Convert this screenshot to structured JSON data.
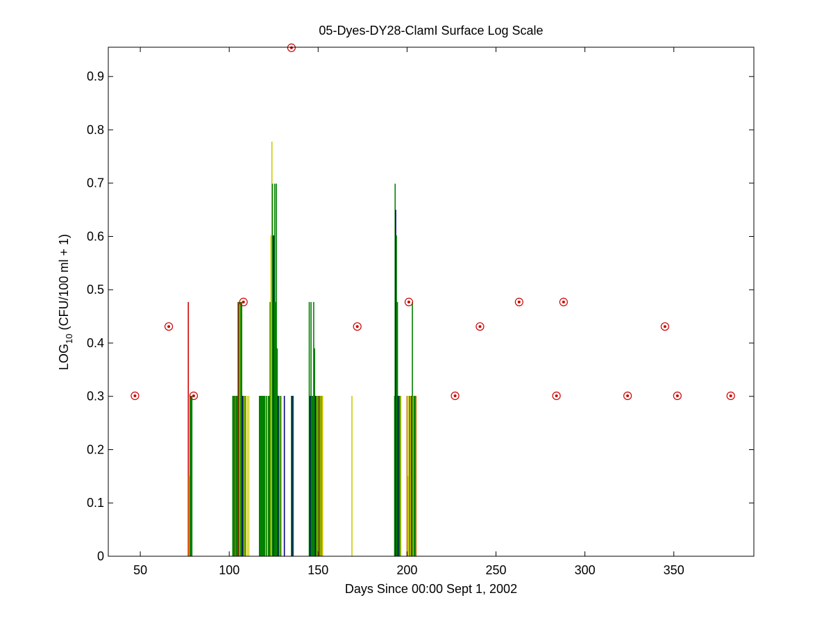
{
  "chart_data": {
    "type": "scatter",
    "title": "05-Dyes-DY28-ClamI Surface Log Scale",
    "xlabel": "Days Since 00:00 Sept 1, 2002",
    "ylabel_prefix": "LOG",
    "ylabel_subscript": "10",
    "ylabel_suffix": " (CFU/100 ml + 1)",
    "xlim": [
      32,
      395
    ],
    "ylim": [
      0,
      0.955
    ],
    "xticks": [
      50,
      100,
      150,
      200,
      250,
      300,
      350
    ],
    "yticks": [
      0,
      0.1,
      0.2,
      0.3,
      0.4,
      0.5,
      0.6,
      0.7,
      0.8,
      0.9
    ],
    "grid": false,
    "colors": {
      "red": "#cc0000",
      "green": "#008000",
      "yellow": "#cccc00",
      "blue": "#000080",
      "orange": "#cc6600"
    },
    "series": [
      {
        "marker": "circle-dot",
        "color": "#cc0000",
        "x": [
          47,
          66,
          80,
          108,
          135,
          172,
          201,
          227,
          241,
          263,
          284,
          288,
          324,
          345,
          352,
          382
        ],
        "y": [
          0.301,
          0.431,
          0.301,
          0.477,
          0.954,
          0.431,
          0.477,
          0.301,
          0.431,
          0.477,
          0.301,
          0.477,
          0.301,
          0.431,
          0.301,
          0.301
        ]
      },
      {
        "marker": "vline",
        "x": [
          77,
          77.5,
          78,
          78.5,
          79,
          102,
          102.5,
          103,
          103.5,
          104,
          104.5,
          105,
          105.5,
          106,
          106.5,
          107,
          107.5,
          108,
          108.5,
          109,
          110,
          111,
          117,
          117.5,
          118,
          118.5,
          119,
          119.5,
          120,
          120.5,
          121,
          122,
          122.5,
          123,
          123.5,
          124,
          124.3,
          124.6,
          125,
          125.3,
          125.6,
          126,
          126.5,
          127,
          127.5,
          128,
          128.5,
          129,
          131,
          135,
          135.5,
          136,
          145,
          145.5,
          146,
          146.5,
          147,
          147.5,
          148,
          148.5,
          149,
          149.5,
          150,
          150.5,
          151,
          151.5,
          152,
          152.5,
          169,
          193,
          193.3,
          193.6,
          194,
          194.3,
          194.6,
          195,
          195.5,
          196,
          196.5,
          200,
          200.5,
          201,
          201.5,
          202,
          202.5,
          203,
          203.5,
          204,
          204.5,
          205
        ],
        "y": [
          0.477,
          0.15,
          0.301,
          0.301,
          0.301,
          0.301,
          0.301,
          0.301,
          0.301,
          0.301,
          0.301,
          0.477,
          0.477,
          0.477,
          0.477,
          0.477,
          0.301,
          0.301,
          0.301,
          0.301,
          0.301,
          0.301,
          0.301,
          0.301,
          0.301,
          0.301,
          0.301,
          0.301,
          0.301,
          0.301,
          0.301,
          0.301,
          0.301,
          0.477,
          0.602,
          0.778,
          0.699,
          0.602,
          0.602,
          0.477,
          0.699,
          0.477,
          0.699,
          0.39,
          0.301,
          0.301,
          0.301,
          0.301,
          0.301,
          0.301,
          0.301,
          0.301,
          0.477,
          0.301,
          0.477,
          0.301,
          0.301,
          0.477,
          0.39,
          0.301,
          0.301,
          0.301,
          0.301,
          0.301,
          0.301,
          0.301,
          0.301,
          0.301,
          0.301,
          0.301,
          0.699,
          0.65,
          0.602,
          0.477,
          0.477,
          0.301,
          0.301,
          0.301,
          0.301,
          0.301,
          0.15,
          0.301,
          0.301,
          0.301,
          0.301,
          0.477,
          0.301,
          0.301,
          0.301,
          0.301
        ],
        "color": [
          "#cc0000",
          "#cccc00",
          "#008000",
          "#008000",
          "#008000",
          "#008000",
          "#008000",
          "#008000",
          "#cc6600",
          "#008000",
          "#008000",
          "#008000",
          "#cc0000",
          "#cccc00",
          "#008000",
          "#008000",
          "#000080",
          "#008000",
          "#cccc00",
          "#008000",
          "#cccc00",
          "#cccc00",
          "#008000",
          "#008000",
          "#008000",
          "#008000",
          "#008000",
          "#008000",
          "#008000",
          "#cccc00",
          "#008000",
          "#008000",
          "#008000",
          "#008000",
          "#cccc00",
          "#cccc00",
          "#008000",
          "#008000",
          "#000080",
          "#008000",
          "#008000",
          "#008000",
          "#008000",
          "#008000",
          "#000080",
          "#008000",
          "#cccc00",
          "#008000",
          "#000080",
          "#008000",
          "#000080",
          "#008000",
          "#008000",
          "#000080",
          "#008000",
          "#008000",
          "#008000",
          "#008000",
          "#008000",
          "#000080",
          "#008000",
          "#cccc00",
          "#008000",
          "#cc6600",
          "#008000",
          "#cccc00",
          "#cc6600",
          "#cccc00",
          "#cccc00",
          "#008000",
          "#008000",
          "#000080",
          "#008000",
          "#008000",
          "#008000",
          "#000080",
          "#008000",
          "#008000",
          "#cccc00",
          "#cc6600",
          "#cccc00",
          "#cccc00",
          "#008000",
          "#cccc00",
          "#cc0000",
          "#008000",
          "#cccc00",
          "#008000",
          "#008000",
          "#cc6600"
        ]
      }
    ]
  }
}
